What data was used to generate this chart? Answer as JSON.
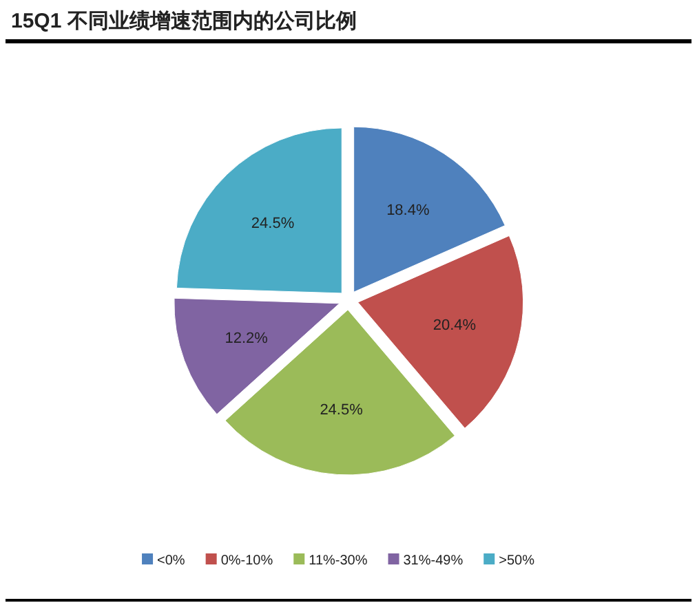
{
  "chart_data": {
    "type": "pie",
    "title": "15Q1 不同业绩增速范围内的公司比例",
    "categories": [
      "<0%",
      "0%-10%",
      "11%-30%",
      "31%-49%",
      ">50%"
    ],
    "values": [
      18.4,
      20.4,
      24.5,
      12.2,
      24.5
    ],
    "colors": [
      "#4f81bd",
      "#c0504d",
      "#9bbb59",
      "#8064a2",
      "#4bacc6"
    ],
    "value_labels": [
      "18.4%",
      "20.4%",
      "24.5%",
      "12.2%",
      "24.5%"
    ],
    "legend": "bottom"
  }
}
